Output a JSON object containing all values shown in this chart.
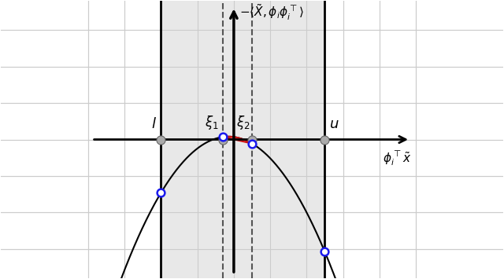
{
  "x_l": -2.0,
  "x_xi1": -0.3,
  "x_xi2": 0.5,
  "x_u": 2.5,
  "x_yaxis": 0.0,
  "peak_x": -0.15,
  "peak_y": 0.08,
  "a_par": -0.45,
  "x_min": -4.0,
  "x_max": 5.0,
  "y_min": -3.8,
  "y_max": 3.8,
  "grid_color": "#cccccc",
  "shaded_region_color": "#e8e8e8",
  "red_fill_color": "#ee4444",
  "red_fill_alpha": 0.55,
  "red_outline_color": "#cc1111",
  "parabola_color": "#000000",
  "axis_color": "#000000",
  "dashed_color": "#555555",
  "border_line_color": "#000000",
  "dot_color": "#1a1aee",
  "dot_on_axis_color": "#888888",
  "label_l": "$l$",
  "label_xi1": "$\\xi_1$",
  "label_xi2": "$\\xi_2$",
  "label_u": "$u$",
  "ylabel": "$-\\langle \\tilde{X}, \\phi_i \\phi_i^\\top \\rangle$",
  "xlabel": "$\\phi_i^\\top \\tilde{x}$"
}
